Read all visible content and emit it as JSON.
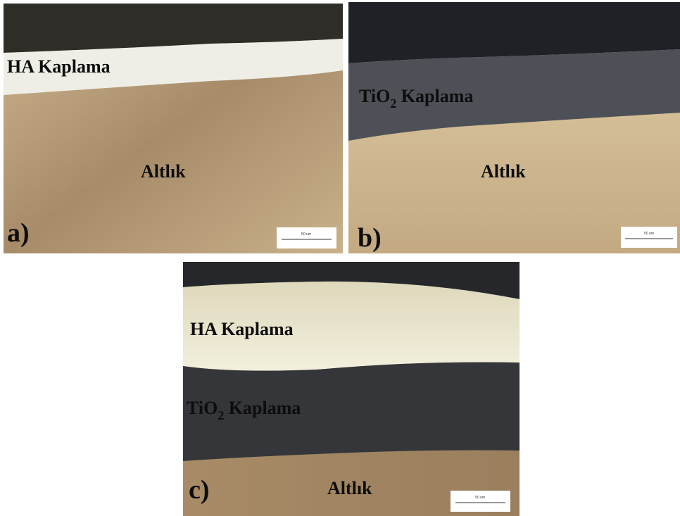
{
  "panel_a": {
    "label": "a)",
    "ha_coating": "HA Kaplama",
    "substrate": "Altlık",
    "scale_bar": "50 um"
  },
  "panel_b": {
    "label": "b)",
    "tio2_coating": {
      "text": "TiO",
      "subscript": "2",
      "rest": " Kaplama"
    },
    "substrate": "Altlık",
    "scale_bar": "50 um"
  },
  "panel_c": {
    "label": "c)",
    "ha_coating": "HA Kaplama",
    "tio2_coating": {
      "text": "TiO",
      "subscript": "2",
      "rest": " Kaplama"
    },
    "substrate": "Altlık",
    "scale_bar": "50 um"
  }
}
